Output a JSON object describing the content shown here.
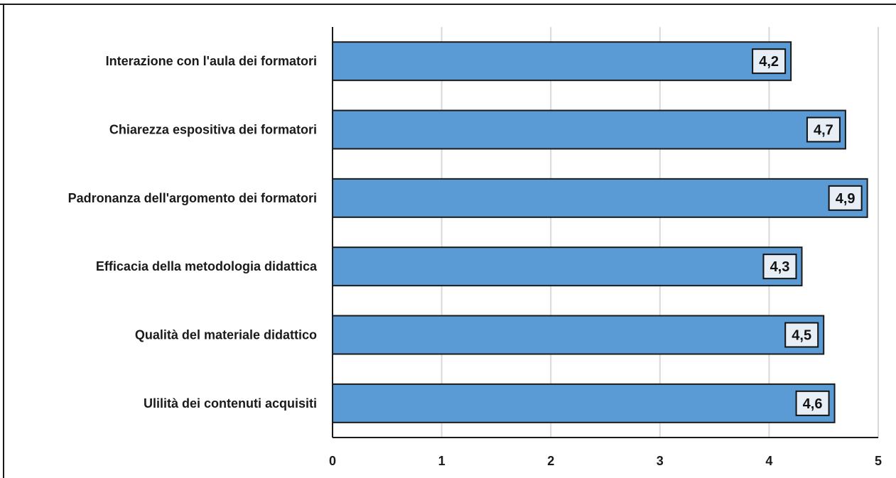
{
  "chart_data": {
    "type": "bar",
    "orientation": "horizontal",
    "categories": [
      "Interazione con l'aula dei formatori",
      "Chiarezza espositiva dei formatori",
      "Padronanza dell'argomento dei formatori",
      "Efficacia della metodologia didattica",
      "Qualità del materiale didattico",
      "Ulilità dei contenuti acquisiti"
    ],
    "values": [
      4.2,
      4.7,
      4.9,
      4.3,
      4.5,
      4.6
    ],
    "data_labels": [
      "4,2",
      "4,7",
      "4,9",
      "4,3",
      "4,5",
      "4,6"
    ],
    "xlim": [
      0,
      5
    ],
    "xticks": [
      0,
      1,
      2,
      3,
      4,
      5
    ],
    "xtick_labels": [
      "0",
      "1",
      "2",
      "3",
      "4",
      "5"
    ],
    "grid": true,
    "legend": false,
    "title": "",
    "xlabel": "",
    "ylabel": "",
    "colors": {
      "bar_fill": "#5b9bd5",
      "bar_stroke": "#1a1a1a",
      "grid": "#d9d9d9",
      "axis": "#1a1a1a",
      "label_box_fill": "#e8eef6",
      "frame": "#1a1a1a",
      "accent_top_left": "#2e75b6"
    }
  }
}
